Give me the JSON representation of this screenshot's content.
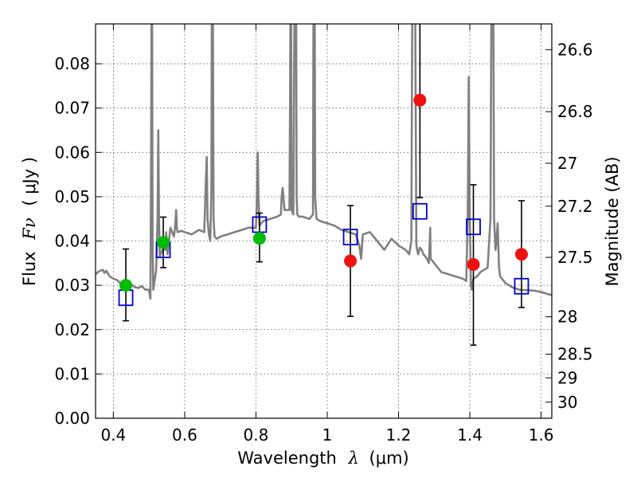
{
  "chart_data": {
    "type": "scatter",
    "xlabel_text": "Wavelength",
    "xlabel_symbol": "λ",
    "xlabel_unit": "(μm)",
    "ylabel_text": "Flux",
    "ylabel_symbol": "Fν",
    "ylabel_unit": "( μJy )",
    "y2label": "Magnitude (AB)",
    "xlim": [
      0.35,
      1.63
    ],
    "ylim": [
      0,
      0.089
    ],
    "grid": true,
    "x_ticks": [
      0.4,
      0.6,
      0.8,
      1.0,
      1.2,
      1.4,
      1.6
    ],
    "x_tick_labels": [
      "0.4",
      "0.6",
      "0.8",
      "1",
      "1.2",
      "1.4",
      "1.6"
    ],
    "y_ticks": [
      0,
      0.01,
      0.02,
      0.03,
      0.04,
      0.05,
      0.06,
      0.07,
      0.08
    ],
    "y_tick_labels": [
      "0.00",
      "0.01",
      "0.02",
      "0.03",
      "0.04",
      "0.05",
      "0.06",
      "0.07",
      "0.08"
    ],
    "mag_ticks": [
      26.6,
      26.8,
      27,
      27.2,
      27.5,
      28,
      28.5,
      29,
      30
    ],
    "mag_tick_labels": [
      "26.6",
      "26.8",
      "27",
      "27.2",
      "27.5",
      "28",
      "28.5",
      "29",
      "30"
    ],
    "colors": {
      "model": "#808080",
      "model_photometry": "#0000cc",
      "detections": "#00bb00",
      "upper_limits": "#ee1111",
      "errorbars": "#000000",
      "grid": "#555555"
    },
    "series": [
      {
        "name": "model spectrum",
        "kind": "line",
        "x": [
          0.35,
          0.36,
          0.37,
          0.375,
          0.38,
          0.39,
          0.4,
          0.41,
          0.42,
          0.43,
          0.44,
          0.45,
          0.46,
          0.47,
          0.48,
          0.49,
          0.5,
          0.504,
          0.506,
          0.508,
          0.51,
          0.512,
          0.514,
          0.52,
          0.524,
          0.526,
          0.528,
          0.53,
          0.535,
          0.54,
          0.546,
          0.548,
          0.55,
          0.552,
          0.556,
          0.56,
          0.565,
          0.57,
          0.574,
          0.576,
          0.578,
          0.58,
          0.59,
          0.6,
          0.62,
          0.64,
          0.655,
          0.66,
          0.662,
          0.664,
          0.668,
          0.672,
          0.675,
          0.677,
          0.679,
          0.681,
          0.684,
          0.69,
          0.7,
          0.72,
          0.74,
          0.76,
          0.78,
          0.8,
          0.803,
          0.805,
          0.807,
          0.81,
          0.82,
          0.84,
          0.86,
          0.87,
          0.872,
          0.875,
          0.88,
          0.894,
          0.896,
          0.898,
          0.9,
          0.905,
          0.91,
          0.912,
          0.914,
          0.916,
          0.92,
          0.93,
          0.95,
          0.96,
          0.962,
          0.964,
          0.966,
          0.97,
          0.98,
          1.0,
          1.02,
          1.04,
          1.06,
          1.08,
          1.09,
          1.095,
          1.1,
          1.12,
          1.14,
          1.16,
          1.18,
          1.2,
          1.22,
          1.23,
          1.236,
          1.24,
          1.245,
          1.25,
          1.255,
          1.26,
          1.265,
          1.27,
          1.28,
          1.285,
          1.287,
          1.289,
          1.29,
          1.3,
          1.32,
          1.34,
          1.36,
          1.38,
          1.39,
          1.394,
          1.397,
          1.4,
          1.403,
          1.406,
          1.41,
          1.42,
          1.43,
          1.44,
          1.45,
          1.458,
          1.462,
          1.465,
          1.468,
          1.472,
          1.475,
          1.478,
          1.482,
          1.485,
          1.49,
          1.5,
          1.52,
          1.54,
          1.56,
          1.58,
          1.6,
          1.62,
          1.63
        ],
        "y": [
          0.0325,
          0.0332,
          0.0335,
          0.0328,
          0.0333,
          0.032,
          0.0315,
          0.0312,
          0.0305,
          0.0308,
          0.03,
          0.0302,
          0.0296,
          0.0294,
          0.0298,
          0.029,
          0.029,
          0.027,
          0.06,
          0.12,
          0.04,
          0.029,
          0.03,
          0.0335,
          0.045,
          0.065,
          0.045,
          0.0365,
          0.0375,
          0.0385,
          0.038,
          0.042,
          0.04,
          0.037,
          0.04,
          0.043,
          0.042,
          0.041,
          0.044,
          0.047,
          0.043,
          0.042,
          0.0423,
          0.042,
          0.0415,
          0.0425,
          0.042,
          0.055,
          0.059,
          0.045,
          0.0415,
          0.04,
          0.052,
          0.12,
          0.095,
          0.045,
          0.041,
          0.0405,
          0.041,
          0.0415,
          0.042,
          0.0425,
          0.043,
          0.043,
          0.05,
          0.06,
          0.05,
          0.0435,
          0.0445,
          0.045,
          0.0455,
          0.046,
          0.05,
          0.052,
          0.047,
          0.047,
          0.075,
          0.12,
          0.047,
          0.046,
          0.12,
          0.12,
          0.05,
          0.046,
          0.0455,
          0.0455,
          0.045,
          0.046,
          0.12,
          0.12,
          0.05,
          0.045,
          0.0445,
          0.044,
          0.0435,
          0.0425,
          0.042,
          0.0415,
          0.039,
          0.036,
          0.0415,
          0.042,
          0.04,
          0.038,
          0.0405,
          0.039,
          0.038,
          0.037,
          0.04,
          0.12,
          0.12,
          0.039,
          0.037,
          0.0385,
          0.038,
          0.037,
          0.036,
          0.035,
          0.039,
          0.043,
          0.036,
          0.035,
          0.033,
          0.0325,
          0.032,
          0.0315,
          0.031,
          0.045,
          0.077,
          0.045,
          0.03,
          0.029,
          0.0315,
          0.032,
          0.033,
          0.0335,
          0.034,
          0.045,
          0.12,
          0.12,
          0.045,
          0.038,
          0.04,
          0.044,
          0.034,
          0.032,
          0.0315,
          0.0305,
          0.0295,
          0.029,
          0.0289,
          0.0288,
          0.0285,
          0.028,
          0.0278
        ]
      },
      {
        "name": "model photometry",
        "kind": "open_square",
        "x": [
          0.435,
          0.54,
          0.81,
          1.065,
          1.26,
          1.41,
          1.545
        ],
        "y": [
          0.0272,
          0.038,
          0.0437,
          0.0409,
          0.0467,
          0.0432,
          0.0298
        ]
      },
      {
        "name": "detections",
        "kind": "filled_circle",
        "x": [
          0.435,
          0.54,
          0.81
        ],
        "y": [
          0.03,
          0.0397,
          0.0406
        ],
        "yerr_low": [
          0.008,
          0.0057,
          0.0053
        ],
        "yerr_high": [
          0.0082,
          0.0057,
          0.0057
        ]
      },
      {
        "name": "upper limits",
        "kind": "filled_circle",
        "x": [
          1.065,
          1.26,
          1.41,
          1.545
        ],
        "y": [
          0.0355,
          0.0718,
          0.0347,
          0.037
        ],
        "yerr_low": [
          0.0125,
          0.022,
          0.0182,
          0.012
        ],
        "yerr_high": [
          0.0125,
          0.02,
          0.018,
          0.0121
        ]
      }
    ]
  }
}
